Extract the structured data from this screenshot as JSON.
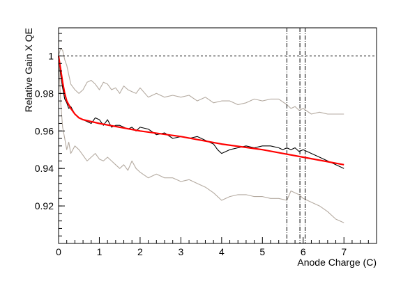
{
  "chart_data": {
    "type": "line",
    "title": "",
    "xlabel": "Anode Charge (C)",
    "ylabel": "Relative Gain X QE",
    "xlim": [
      0,
      7.8
    ],
    "ylim": [
      0.9,
      1.015
    ],
    "xticks": [
      0,
      1,
      2,
      3,
      4,
      5,
      6,
      7
    ],
    "yticks": [
      0.92,
      0.94,
      0.96,
      0.98,
      1
    ],
    "ytick_labels": [
      "0.92",
      "0.94",
      "0.96",
      "0.98",
      "1"
    ],
    "grid": false,
    "legend": "none",
    "reference_line": {
      "y": 1.0,
      "style": "dashed"
    },
    "vertical_lines": [
      {
        "x": 5.6,
        "style": "dash-dot"
      },
      {
        "x": 5.92,
        "style": "dash-dot"
      },
      {
        "x": 6.05,
        "style": "dash-dot"
      }
    ],
    "series": [
      {
        "role": "data",
        "color": "#000000",
        "x": [
          0,
          0.05,
          0.1,
          0.15,
          0.2,
          0.25,
          0.3,
          0.35,
          0.4,
          0.5,
          0.6,
          0.7,
          0.8,
          0.9,
          1.0,
          1.1,
          1.2,
          1.3,
          1.4,
          1.5,
          1.6,
          1.7,
          1.8,
          1.9,
          2.0,
          2.2,
          2.4,
          2.6,
          2.8,
          3.0,
          3.2,
          3.4,
          3.6,
          3.8,
          3.9,
          4.0,
          4.2,
          4.4,
          4.6,
          4.8,
          5.0,
          5.2,
          5.4,
          5.5,
          5.6,
          5.7,
          5.8,
          5.9,
          6.0,
          6.2,
          6.4,
          6.6,
          6.8,
          7.0
        ],
        "y": [
          1.0,
          0.99,
          0.983,
          0.977,
          0.975,
          0.972,
          0.973,
          0.971,
          0.969,
          0.967,
          0.966,
          0.965,
          0.964,
          0.967,
          0.966,
          0.963,
          0.966,
          0.962,
          0.963,
          0.963,
          0.962,
          0.961,
          0.962,
          0.96,
          0.962,
          0.961,
          0.958,
          0.959,
          0.956,
          0.957,
          0.956,
          0.957,
          0.955,
          0.953,
          0.95,
          0.948,
          0.95,
          0.951,
          0.952,
          0.951,
          0.952,
          0.952,
          0.951,
          0.95,
          0.951,
          0.95,
          0.951,
          0.949,
          0.95,
          0.948,
          0.946,
          0.944,
          0.942,
          0.94
        ]
      },
      {
        "role": "upper-band",
        "color": "#b4aaa0",
        "x": [
          0,
          0.05,
          0.1,
          0.15,
          0.2,
          0.25,
          0.3,
          0.4,
          0.5,
          0.6,
          0.7,
          0.8,
          0.9,
          1.0,
          1.1,
          1.2,
          1.3,
          1.4,
          1.5,
          1.6,
          1.7,
          1.8,
          1.9,
          2.0,
          2.2,
          2.4,
          2.6,
          2.8,
          3.0,
          3.2,
          3.4,
          3.6,
          3.8,
          4.0,
          4.2,
          4.4,
          4.6,
          4.8,
          5.0,
          5.2,
          5.4,
          5.6,
          5.7,
          5.8,
          5.9,
          6.0,
          6.2,
          6.4,
          6.6,
          6.8,
          7.0,
          7.0
        ],
        "y": [
          1.0,
          1.004,
          1.003,
          0.998,
          0.995,
          0.99,
          0.985,
          0.982,
          0.98,
          0.982,
          0.986,
          0.987,
          0.985,
          0.982,
          0.986,
          0.985,
          0.982,
          0.983,
          0.98,
          0.984,
          0.982,
          0.981,
          0.98,
          0.983,
          0.978,
          0.98,
          0.978,
          0.979,
          0.978,
          0.979,
          0.976,
          0.978,
          0.975,
          0.976,
          0.976,
          0.974,
          0.975,
          0.977,
          0.976,
          0.977,
          0.977,
          0.974,
          0.972,
          0.973,
          0.971,
          0.972,
          0.969,
          0.97,
          0.969,
          0.969,
          0.969,
          0.969
        ]
      },
      {
        "role": "lower-band",
        "color": "#b4aaa0",
        "x": [
          0,
          0.05,
          0.1,
          0.15,
          0.2,
          0.25,
          0.3,
          0.4,
          0.5,
          0.6,
          0.7,
          0.8,
          0.9,
          1.0,
          1.1,
          1.2,
          1.3,
          1.4,
          1.5,
          1.6,
          1.7,
          1.8,
          1.9,
          2.0,
          2.2,
          2.4,
          2.6,
          2.8,
          3.0,
          3.2,
          3.4,
          3.6,
          3.8,
          4.0,
          4.2,
          4.4,
          4.6,
          4.8,
          5.0,
          5.2,
          5.4,
          5.6,
          5.7,
          5.8,
          5.9,
          6.0,
          6.2,
          6.4,
          6.6,
          6.8,
          7.0
        ],
        "y": [
          1.0,
          0.976,
          0.962,
          0.956,
          0.95,
          0.954,
          0.948,
          0.952,
          0.95,
          0.947,
          0.944,
          0.946,
          0.948,
          0.945,
          0.944,
          0.946,
          0.944,
          0.942,
          0.94,
          0.942,
          0.939,
          0.944,
          0.94,
          0.938,
          0.935,
          0.937,
          0.935,
          0.935,
          0.933,
          0.934,
          0.932,
          0.93,
          0.927,
          0.923,
          0.925,
          0.926,
          0.926,
          0.925,
          0.925,
          0.924,
          0.924,
          0.923,
          0.928,
          0.927,
          0.926,
          0.924,
          0.922,
          0.92,
          0.917,
          0.913,
          0.911
        ]
      },
      {
        "role": "fit",
        "color": "#ff0000",
        "x": [
          0,
          0.05,
          0.1,
          0.15,
          0.2,
          0.3,
          0.4,
          0.5,
          0.6,
          0.8,
          1.0,
          1.5,
          2.0,
          3.0,
          4.0,
          5.0,
          6.0,
          7.0
        ],
        "y": [
          1.0,
          0.993,
          0.986,
          0.98,
          0.976,
          0.972,
          0.969,
          0.967,
          0.966,
          0.965,
          0.964,
          0.962,
          0.96,
          0.957,
          0.953,
          0.95,
          0.946,
          0.942
        ]
      }
    ]
  }
}
